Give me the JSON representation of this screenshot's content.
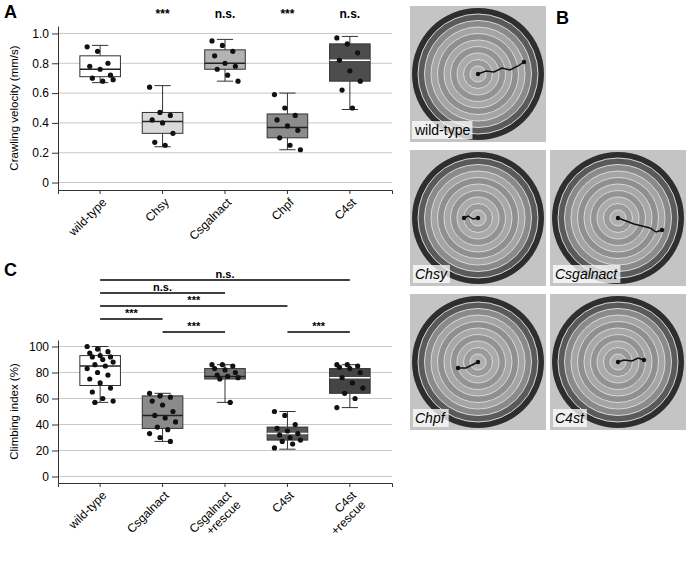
{
  "chart_data": [
    {
      "type": "box",
      "panel_label": "A",
      "y_label": "Crawling velocity (mm/s)",
      "categories": [
        "wild-type",
        "Chsy",
        "Csgalnact",
        "Chpf",
        "C4st"
      ],
      "colors": [
        "#ffffff",
        "#d9d9d9",
        "#b3b3b3",
        "#8c8c8c",
        "#4d4d4d"
      ],
      "boxes": [
        {
          "min": 0.67,
          "q1": 0.71,
          "median": 0.76,
          "q3": 0.85,
          "max": 0.92
        },
        {
          "min": 0.24,
          "q1": 0.33,
          "median": 0.41,
          "q3": 0.47,
          "max": 0.65
        },
        {
          "min": 0.68,
          "q1": 0.76,
          "median": 0.8,
          "q3": 0.89,
          "max": 0.96
        },
        {
          "min": 0.22,
          "q1": 0.3,
          "median": 0.37,
          "q3": 0.46,
          "max": 0.6
        },
        {
          "min": 0.49,
          "q1": 0.68,
          "median": 0.82,
          "q3": 0.93,
          "max": 0.98
        }
      ],
      "points": [
        [
          0.91,
          0.88,
          0.8,
          0.78,
          0.76,
          0.72,
          0.7,
          0.68,
          0.69
        ],
        [
          0.64,
          0.47,
          0.45,
          0.42,
          0.4,
          0.33,
          0.27,
          0.25
        ],
        [
          0.95,
          0.92,
          0.88,
          0.85,
          0.8,
          0.78,
          0.76,
          0.72,
          0.68
        ],
        [
          0.59,
          0.5,
          0.45,
          0.42,
          0.38,
          0.35,
          0.3,
          0.25,
          0.22
        ],
        [
          0.97,
          0.93,
          0.87,
          0.82,
          0.75,
          0.68,
          0.62,
          0.5
        ]
      ],
      "significance": [
        null,
        "***",
        "n.s.",
        "***",
        "n.s."
      ],
      "ylim": [
        -0.05,
        1.05
      ],
      "yticks": [
        0,
        0.2,
        0.4,
        0.6,
        0.8,
        {
          "value": 1,
          "label": "1.0"
        }
      ],
      "grid": true
    },
    {
      "type": "box",
      "panel_label": "C",
      "y_label": "Climbing index (%)",
      "categories": [
        "wild-type",
        "Csgalnact",
        "Csgalnact +rescue",
        "C4st",
        "C4st +rescue"
      ],
      "colors": [
        "#ffffff",
        "#8a8a8a",
        "#767676",
        "#555555",
        "#444444"
      ],
      "boxes": [
        {
          "min": 57,
          "q1": 70,
          "median": 85,
          "q3": 93,
          "max": 100
        },
        {
          "min": 27,
          "q1": 37,
          "median": 47,
          "q3": 62,
          "max": 64
        },
        {
          "min": 57,
          "q1": 75,
          "median": 77,
          "q3": 83,
          "max": 86
        },
        {
          "min": 21,
          "q1": 28,
          "median": 33,
          "q3": 38,
          "max": 50
        },
        {
          "min": 53,
          "q1": 64,
          "median": 76,
          "q3": 83,
          "max": 86
        }
      ],
      "points": [
        [
          100,
          98,
          96,
          95,
          93,
          92,
          92,
          90,
          88,
          86,
          85,
          83,
          80,
          78,
          75,
          72,
          68,
          65,
          60,
          58,
          57
        ],
        [
          64,
          62,
          61,
          58,
          55,
          50,
          47,
          45,
          42,
          38,
          36,
          33,
          30,
          27
        ],
        [
          86,
          86,
          85,
          83,
          82,
          80,
          78,
          77,
          76,
          75,
          57
        ],
        [
          50,
          47,
          40,
          37,
          35,
          33,
          32,
          30,
          28,
          27,
          25,
          22
        ],
        [
          86,
          86,
          85,
          84,
          83,
          80,
          76,
          72,
          68,
          64,
          60,
          53
        ]
      ],
      "comparisons": [
        {
          "from": 1,
          "to": 2,
          "label": "***"
        },
        {
          "from": 3,
          "to": 4,
          "label": "***"
        },
        {
          "from": 0,
          "to": 1,
          "label": "***"
        },
        {
          "from": 0,
          "to": 3,
          "label": "***"
        },
        {
          "from": 0,
          "to": 2,
          "label": "n.s."
        },
        {
          "from": 0,
          "to": 4,
          "label": "n.s."
        }
      ],
      "ylim": [
        -5,
        105
      ],
      "yticks": [
        0,
        20,
        40,
        60,
        80,
        100
      ],
      "grid": true
    }
  ],
  "photo_panel": {
    "panel_label": "B",
    "labels": [
      "wild-type",
      "Chsy",
      "Csgalnact",
      "Chpf",
      "C4st"
    ]
  }
}
